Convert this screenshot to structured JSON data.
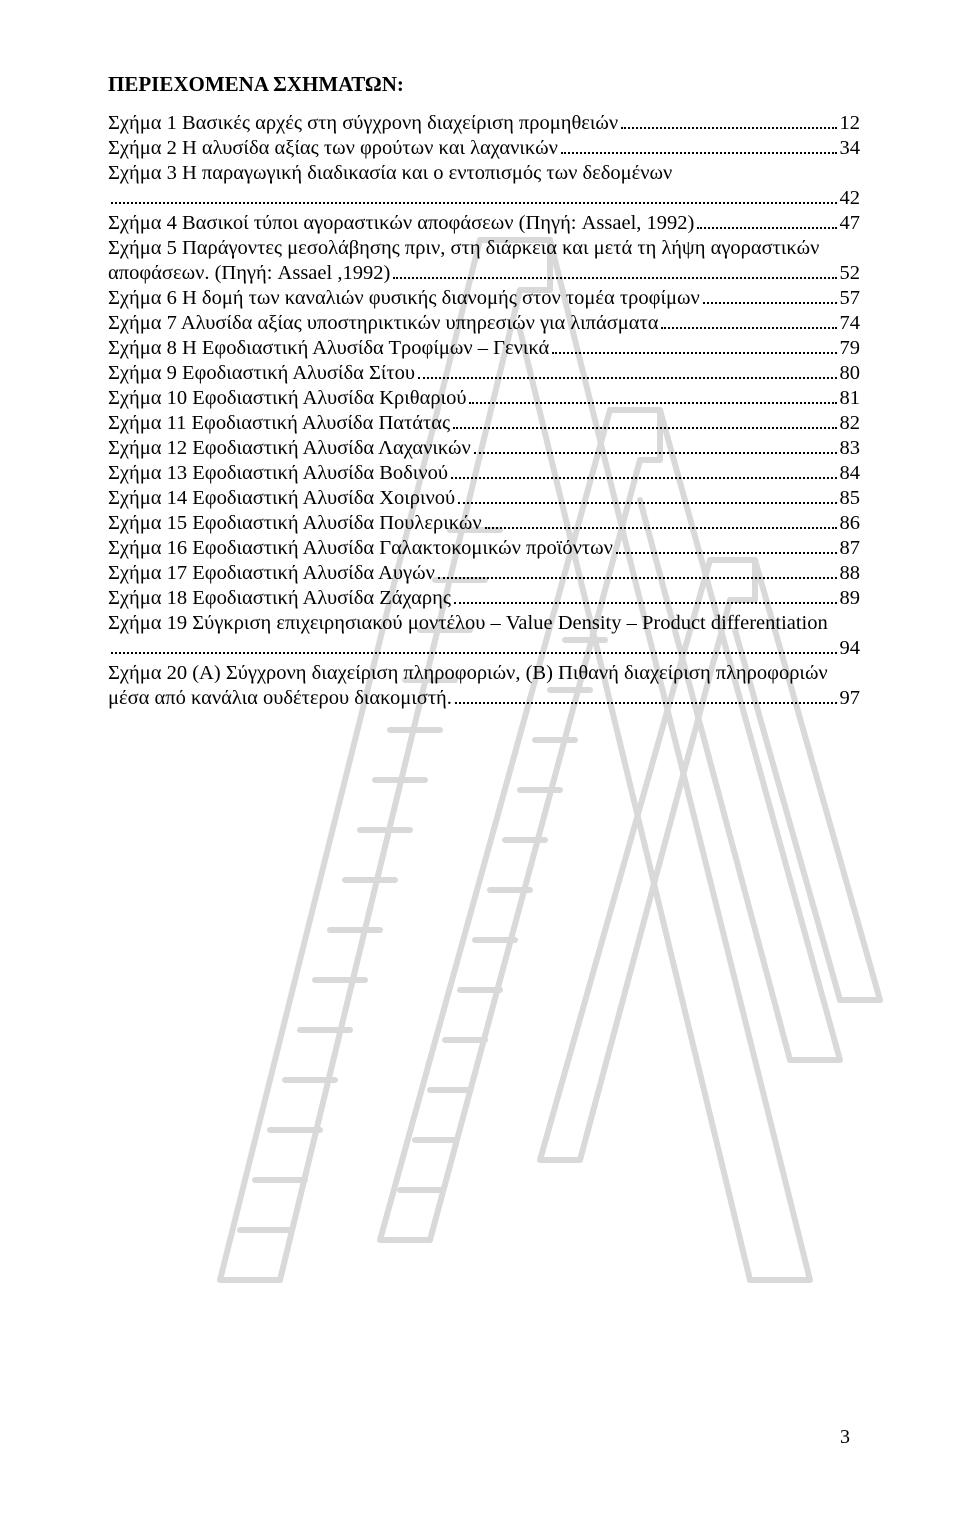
{
  "watermark": {
    "stroke": "#d9d9d9",
    "strokeWidth": 6
  },
  "heading": "ΠΕΡΙΕΧΟΜΕΝΑ ΣΧΗΜΑΤΩΝ:",
  "entries": [
    {
      "text": "Σχήμα 1 Βασικές αρχές στη σύγχρονη διαχείριση προμηθειών",
      "page": "12"
    },
    {
      "text": "Σχήμα 2 Η αλυσίδα αξίας των φρούτων και λαχανικών",
      "page": "34"
    },
    {
      "text_l1": "Σχήμα 3 Η παραγωγική διαδικασία και ο εντοπισμός των δεδομένων",
      "page": "42"
    },
    {
      "text": "Σχήμα 4 Βασικοί τύποι αγοραστικών αποφάσεων (Πηγή: Assael, 1992)",
      "page": "47"
    },
    {
      "text_l1": "Σχήμα 5 Παράγοντες μεσολάβησης πριν, στη διάρκεια και μετά τη λήψη αγοραστικών",
      "text_l2": "αποφάσεων. (Πηγή: Assael ,1992)",
      "page": "52"
    },
    {
      "text": "Σχήμα 6 Η δομή των καναλιών φυσικής διανομής στον τομέα τροφίμων",
      "page": "57"
    },
    {
      "text": "Σχήμα 7 Αλυσίδα αξίας υποστηρικτικών υπηρεσιών για λιπάσματα",
      "page": "74"
    },
    {
      "text": "Σχήμα 8 Η Εφοδιαστική Αλυσίδα Τροφίμων – Γενικά",
      "page": "79"
    },
    {
      "text": "Σχήμα 9 Εφοδιαστική Αλυσίδα Σίτου",
      "page": "80"
    },
    {
      "text": "Σχήμα 10 Εφοδιαστική Αλυσίδα Κριθαριού",
      "page": "81"
    },
    {
      "text": "Σχήμα 11 Εφοδιαστική Αλυσίδα Πατάτας",
      "page": "82"
    },
    {
      "text": "Σχήμα 12 Εφοδιαστική Αλυσίδα Λαχανικών",
      "page": "83"
    },
    {
      "text": "Σχήμα 13 Εφοδιαστική Αλυσίδα Βοδινού",
      "page": "84"
    },
    {
      "text": "Σχήμα 14 Εφοδιαστική Αλυσίδα Χοιρινού",
      "page": "85"
    },
    {
      "text": "Σχήμα 15 Εφοδιαστική Αλυσίδα Πουλερικών",
      "page": "86"
    },
    {
      "text": "Σχήμα 16 Εφοδιαστική Αλυσίδα Γαλακτοκομικών προϊόντων",
      "page": "87"
    },
    {
      "text": "Σχήμα 17 Εφοδιαστική Αλυσίδα Αυγών",
      "page": "88"
    },
    {
      "text": "Σχήμα 18 Εφοδιαστική Αλυσίδα Ζάχαρης",
      "page": "89"
    },
    {
      "text_l1": "Σχήμα 19 Σύγκριση επιχειρησιακού μοντέλου – Value Density – Product differentiation",
      "page": "94",
      "dots_only": true
    },
    {
      "text_l1": "Σχήμα 20 (Α) Σύγχρονη διαχείριση πληροφοριών, (Β) Πιθανή διαχείριση πληροφοριών",
      "text_l2": "μέσα από κανάλια ουδέτερου διακομιστή.",
      "page": "97"
    }
  ],
  "footer_page": "3"
}
